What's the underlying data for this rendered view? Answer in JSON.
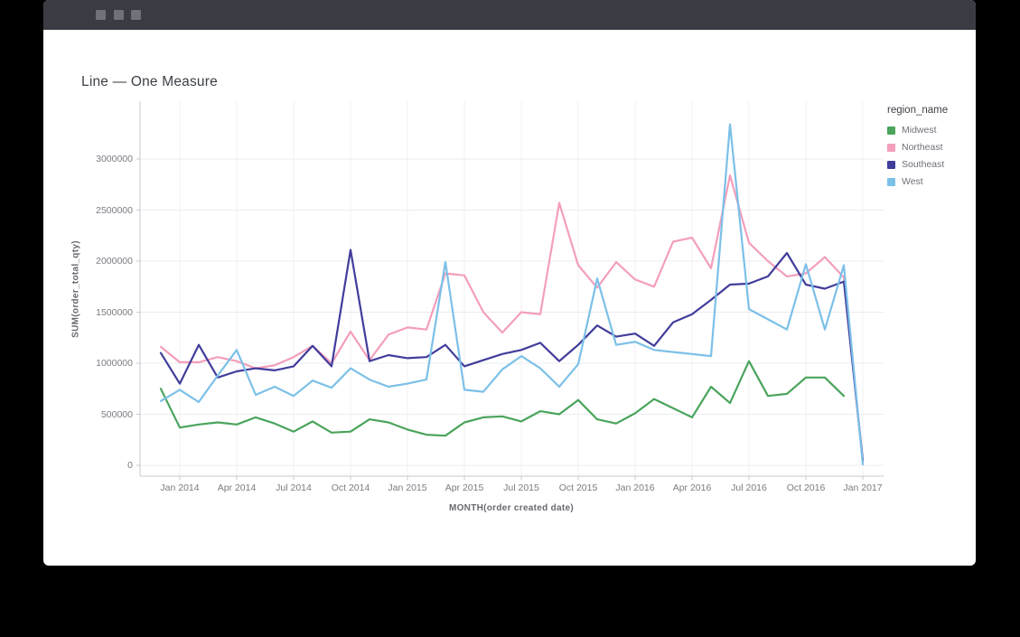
{
  "window": {
    "titlebar_color": "#3b3b44",
    "body_color": "#ffffff"
  },
  "chart": {
    "title": "Line — One Measure"
  },
  "chart_data": {
    "type": "line",
    "title": "Line — One Measure",
    "xlabel": "MONTH(order created date)",
    "ylabel": "SUM(order_total_qty)",
    "legend_title": "region_name",
    "legend_position": "right",
    "grid": true,
    "ylim": [
      0,
      3560000
    ],
    "y_ticks": [
      0,
      500000,
      1000000,
      1500000,
      2000000,
      2500000,
      3000000
    ],
    "y_tick_labels": [
      "0",
      "500000",
      "1000000",
      "1500000",
      "2000000",
      "2500000",
      "3000000"
    ],
    "x": [
      "Dec 2013",
      "Jan 2014",
      "Feb 2014",
      "Mar 2014",
      "Apr 2014",
      "May 2014",
      "Jun 2014",
      "Jul 2014",
      "Aug 2014",
      "Sep 2014",
      "Oct 2014",
      "Nov 2014",
      "Dec 2014",
      "Jan 2015",
      "Feb 2015",
      "Mar 2015",
      "Apr 2015",
      "May 2015",
      "Jun 2015",
      "Jul 2015",
      "Aug 2015",
      "Sep 2015",
      "Oct 2015",
      "Nov 2015",
      "Dec 2015",
      "Jan 2016",
      "Feb 2016",
      "Mar 2016",
      "Apr 2016",
      "May 2016",
      "Jun 2016",
      "Jul 2016",
      "Aug 2016",
      "Sep 2016",
      "Oct 2016",
      "Nov 2016",
      "Dec 2016",
      "Jan 2017"
    ],
    "x_tick_indices": [
      1,
      4,
      7,
      10,
      13,
      16,
      19,
      22,
      25,
      28,
      31,
      34,
      37
    ],
    "x_tick_labels": [
      "Jan 2014",
      "Apr 2014",
      "Jul 2014",
      "Oct 2014",
      "Jan 2015",
      "Apr 2015",
      "Jul 2015",
      "Oct 2015",
      "Jan 2016",
      "Apr 2016",
      "Jul 2016",
      "Oct 2016",
      "Jan 2017"
    ],
    "series": [
      {
        "name": "Midwest",
        "color": "#4aa45c",
        "values": [
          750000,
          370000,
          400000,
          420000,
          400000,
          470000,
          410000,
          330000,
          430000,
          320000,
          330000,
          450000,
          420000,
          350000,
          300000,
          290000,
          420000,
          470000,
          480000,
          430000,
          530000,
          500000,
          640000,
          450000,
          410000,
          510000,
          650000,
          560000,
          470000,
          770000,
          610000,
          1020000,
          680000,
          700000,
          860000,
          860000,
          680000,
          null
        ]
      },
      {
        "name": "Northeast",
        "color": "#f49ebc",
        "values": [
          1160000,
          1010000,
          1010000,
          1060000,
          1020000,
          950000,
          980000,
          1060000,
          1170000,
          1000000,
          1310000,
          1030000,
          1280000,
          1350000,
          1330000,
          1880000,
          1860000,
          1500000,
          1300000,
          1500000,
          1480000,
          2570000,
          1960000,
          1740000,
          1990000,
          1820000,
          1750000,
          2190000,
          2230000,
          1930000,
          2840000,
          2180000,
          2000000,
          1850000,
          1880000,
          2040000,
          1840000,
          30000
        ]
      },
      {
        "name": "Southeast",
        "color": "#413d9b",
        "values": [
          1100000,
          800000,
          1180000,
          860000,
          920000,
          950000,
          930000,
          970000,
          1170000,
          970000,
          2110000,
          1020000,
          1080000,
          1050000,
          1060000,
          1180000,
          970000,
          1030000,
          1090000,
          1130000,
          1200000,
          1020000,
          1180000,
          1370000,
          1260000,
          1290000,
          1170000,
          1400000,
          1480000,
          1620000,
          1770000,
          1780000,
          1850000,
          2080000,
          1770000,
          1730000,
          1800000,
          50000
        ]
      },
      {
        "name": "West",
        "color": "#7cc0e8",
        "values": [
          630000,
          740000,
          620000,
          880000,
          1130000,
          690000,
          770000,
          680000,
          830000,
          760000,
          950000,
          840000,
          770000,
          800000,
          840000,
          1990000,
          740000,
          720000,
          940000,
          1070000,
          950000,
          770000,
          990000,
          1830000,
          1180000,
          1210000,
          1130000,
          1110000,
          1090000,
          1070000,
          3340000,
          1530000,
          1430000,
          1330000,
          1970000,
          1330000,
          1960000,
          10000
        ]
      }
    ]
  }
}
